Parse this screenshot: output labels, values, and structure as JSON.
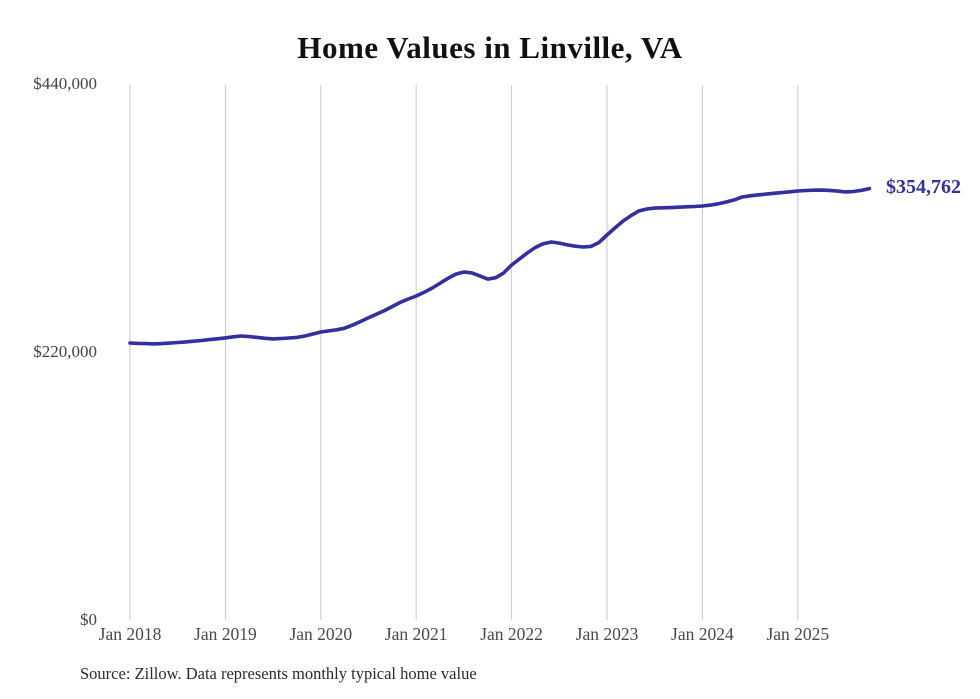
{
  "title": "Home Values in Linville, VA",
  "latest_value_label": "$354,762",
  "source_note": "Source: Zillow. Data represents monthly typical home value",
  "colors": {
    "line": "#332f9e",
    "annotation": "#332f9e",
    "gridline": "#c9c9c9",
    "axis_text": "#444444",
    "title_text": "#111111",
    "background": "#ffffff"
  },
  "chart_data": {
    "type": "line",
    "title": "Home Values in Linville, VA",
    "series_name": "Typical home value",
    "frequency": "monthly",
    "x": [
      "2018-01",
      "2018-02",
      "2018-03",
      "2018-04",
      "2018-05",
      "2018-06",
      "2018-07",
      "2018-08",
      "2018-09",
      "2018-10",
      "2018-11",
      "2018-12",
      "2019-01",
      "2019-02",
      "2019-03",
      "2019-04",
      "2019-05",
      "2019-06",
      "2019-07",
      "2019-08",
      "2019-09",
      "2019-10",
      "2019-11",
      "2019-12",
      "2020-01",
      "2020-02",
      "2020-03",
      "2020-04",
      "2020-05",
      "2020-06",
      "2020-07",
      "2020-08",
      "2020-09",
      "2020-10",
      "2020-11",
      "2020-12",
      "2021-01",
      "2021-02",
      "2021-03",
      "2021-04",
      "2021-05",
      "2021-06",
      "2021-07",
      "2021-08",
      "2021-09",
      "2021-10",
      "2021-11",
      "2021-12",
      "2022-01",
      "2022-02",
      "2022-03",
      "2022-04",
      "2022-05",
      "2022-06",
      "2022-07",
      "2022-08",
      "2022-09",
      "2022-10",
      "2022-11",
      "2022-12",
      "2023-01",
      "2023-02",
      "2023-03",
      "2023-04",
      "2023-05",
      "2023-06",
      "2023-07",
      "2023-08",
      "2023-09",
      "2023-10",
      "2023-11",
      "2023-12",
      "2024-01",
      "2024-02",
      "2024-03",
      "2024-04",
      "2024-05",
      "2024-06",
      "2024-07",
      "2024-08",
      "2024-09",
      "2024-10",
      "2024-11",
      "2024-12",
      "2025-01",
      "2025-02",
      "2025-03",
      "2025-04",
      "2025-05",
      "2025-06",
      "2025-07",
      "2025-08",
      "2025-09",
      "2025-10"
    ],
    "values": [
      227800,
      227500,
      227300,
      227100,
      227300,
      227700,
      228200,
      228700,
      229300,
      229900,
      230600,
      231300,
      232000,
      232900,
      233600,
      233100,
      232400,
      231700,
      231200,
      231500,
      231900,
      232400,
      233600,
      235200,
      236900,
      237800,
      238700,
      240000,
      242500,
      245500,
      248500,
      251500,
      254500,
      257800,
      261200,
      264000,
      266500,
      269500,
      273000,
      277000,
      281000,
      284500,
      286200,
      285500,
      283000,
      280400,
      281500,
      285500,
      292000,
      297000,
      302000,
      306500,
      309500,
      310900,
      310000,
      308500,
      307400,
      306800,
      307300,
      310500,
      316600,
      322500,
      328000,
      332500,
      336400,
      338000,
      338800,
      339000,
      339200,
      339500,
      339800,
      340100,
      340500,
      341200,
      342300,
      343800,
      345500,
      347900,
      348900,
      349600,
      350300,
      350900,
      351500,
      352200,
      352800,
      353200,
      353500,
      353600,
      353300,
      352700,
      352100,
      352400,
      353300,
      354762
    ],
    "last_value": 354762,
    "last_value_annotation": "$354,762",
    "x_tick_labels": [
      "Jan 2018",
      "Jan 2019",
      "Jan 2020",
      "Jan 2021",
      "Jan 2022",
      "Jan 2023",
      "Jan 2024",
      "Jan 2025"
    ],
    "y_tick_labels": [
      "$0",
      "$220,000",
      "$440,000"
    ],
    "y_tick_values": [
      0,
      220000,
      440000
    ],
    "ylim": [
      0,
      440000
    ],
    "grid": "vertical-only",
    "legend": "none"
  }
}
